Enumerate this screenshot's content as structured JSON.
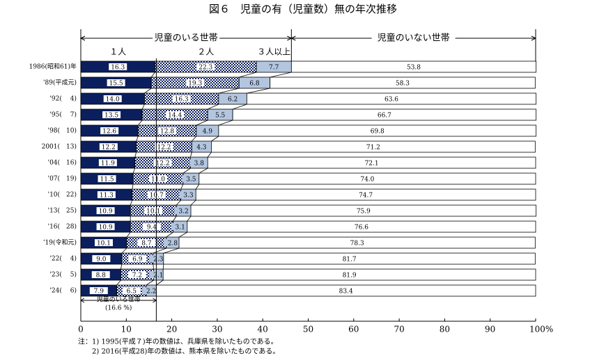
{
  "chart_data": {
    "type": "stacked-bar-horizontal",
    "title": "図６　児童の有（児童数）無の年次推移",
    "group_label": "児童のいる世帯",
    "categories": [
      "1986(昭和61)年",
      "'89(平成元)",
      "'92(　 4)",
      "'95(　 7)",
      "'98(　10)",
      "2001(　13)",
      "'04(　16)",
      "'07(　19)",
      "'10(　22)",
      "'13(　25)",
      "'16(　28)",
      "'19(令和元)",
      "'22(　 4)",
      "'23(　 5)",
      "'24(　 6)"
    ],
    "series": [
      {
        "name": "１人",
        "color": "#0b1f5e",
        "values": [
          16.3,
          15.5,
          14.0,
          13.5,
          12.6,
          12.2,
          11.9,
          11.5,
          11.3,
          10.9,
          10.9,
          10.1,
          9.0,
          8.8,
          7.9
        ],
        "value_labels": [
          "16.3",
          "15.5",
          "14.0",
          "13.5",
          "12.6",
          "12.2",
          "11.9",
          "11.5",
          "11.3",
          "10.9",
          "10.9",
          "10.1",
          "9.0",
          "8.8",
          "7.9"
        ]
      },
      {
        "name": "２人",
        "color": "#0b1f5e",
        "pattern": "checker",
        "values": [
          22.3,
          19.3,
          16.3,
          14.4,
          12.8,
          12.2,
          12.2,
          11.0,
          10.7,
          10.1,
          9.4,
          8.7,
          6.9,
          7.2,
          6.5
        ],
        "value_labels": [
          "22.3",
          "19.3",
          "16.3",
          "14.4",
          "12.8",
          "12.2",
          "12.2",
          "11.0",
          "10.7",
          "10.1",
          "9.4",
          "8.7",
          "6.9",
          "7.2",
          "6.5"
        ]
      },
      {
        "name": "３人以上",
        "color": "#b3c6e0",
        "values": [
          7.7,
          6.8,
          6.2,
          5.5,
          4.9,
          4.3,
          3.8,
          3.5,
          3.3,
          3.2,
          3.1,
          2.8,
          2.3,
          2.1,
          2.2
        ],
        "value_labels": [
          "7.7",
          "6.8",
          "6.2",
          "5.5",
          "4.9",
          "4.3",
          "3.8",
          "3.5",
          "3.3",
          "3.2",
          "3.1",
          "2.8",
          "2.3",
          "2.1",
          "2.2"
        ]
      },
      {
        "name": "児童のいない世帯",
        "color": "#ffffff",
        "values": [
          53.8,
          58.3,
          63.6,
          66.7,
          69.8,
          71.2,
          72.1,
          74.0,
          74.7,
          75.9,
          76.6,
          78.3,
          81.7,
          81.9,
          83.4
        ],
        "value_labels": [
          "53.8",
          "58.3",
          "63.6",
          "66.7",
          "69.8",
          "71.2",
          "72.1",
          "74.0",
          "74.7",
          "75.9",
          "76.6",
          "78.3",
          "81.7",
          "81.9",
          "83.4"
        ]
      }
    ],
    "xlim": [
      0,
      100
    ],
    "xticks": [
      0,
      10,
      20,
      30,
      40,
      50,
      60,
      70,
      80,
      90,
      {
        "value": 100,
        "label": "100%"
      }
    ],
    "annotation": {
      "label": "児童のいる世帯",
      "value": 16.6,
      "value_label": "(16.6 %)"
    },
    "notes": [
      "注：1)  1995(平成７)年の数値は、兵庫県を除いたものである。",
      "2)  2016(平成28)年の数値は、熊本県を除いたものである。"
    ]
  }
}
